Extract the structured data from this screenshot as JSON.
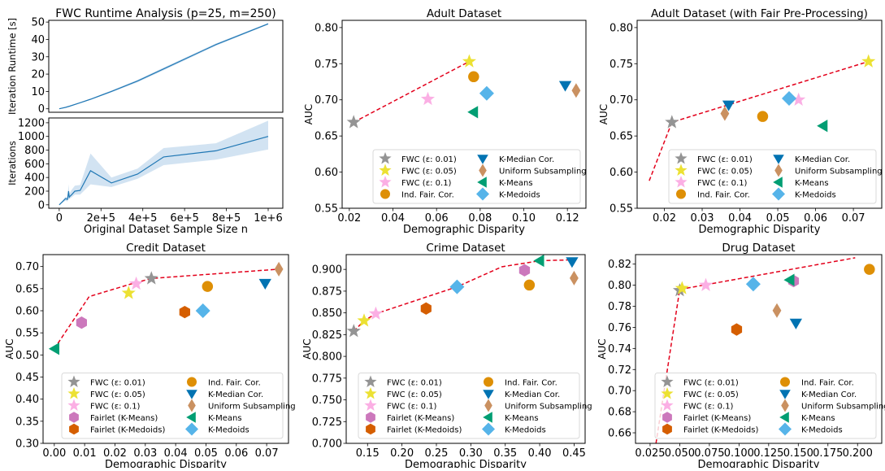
{
  "chart_data": [
    {
      "id": "runtime",
      "type": "line",
      "title": "FWC Runtime Analysis (p=25, m=250)",
      "xlabel": "",
      "ylabel": "Iteration Runtime [s]",
      "xlim": [
        -50000,
        1070000
      ],
      "ylim": [
        -2,
        51
      ],
      "yticks": [
        0,
        10,
        20,
        30,
        40,
        50
      ],
      "ytick_labels": [
        "0",
        "10",
        "20",
        "30",
        "40",
        "50"
      ],
      "series": [
        {
          "name": "runtime",
          "color": "#1f77b4",
          "x": [
            0,
            30000,
            50000,
            100000,
            150000,
            250000,
            375000,
            500000,
            750000,
            1000000
          ],
          "y": [
            0,
            0.8,
            1.5,
            3.5,
            5.5,
            10,
            16,
            23,
            37,
            49
          ],
          "band_low": [
            0,
            0.7,
            1.3,
            3.2,
            5.2,
            9.5,
            15.3,
            22.2,
            36.3,
            48.5
          ],
          "band_high": [
            0.2,
            0.9,
            1.7,
            3.8,
            5.8,
            10.5,
            16.7,
            23.8,
            37.7,
            49.5
          ]
        }
      ]
    },
    {
      "id": "iterations",
      "type": "line",
      "title": "",
      "xlabel": "Original Dataset Sample Size n",
      "ylabel": "Iterations",
      "xlim": [
        -50000,
        1070000
      ],
      "ylim": [
        -50,
        1270
      ],
      "xticks": [
        0,
        200000,
        400000,
        600000,
        800000,
        1000000
      ],
      "xtick_labels": [
        "0",
        "2e+5",
        "4e+5",
        "6e+5",
        "8e+5",
        "1e+6"
      ],
      "yticks": [
        0,
        200,
        400,
        600,
        800,
        1000,
        1200
      ],
      "ytick_labels": [
        "0",
        "200",
        "400",
        "600",
        "800",
        "1000",
        "1200"
      ],
      "series": [
        {
          "name": "iterations",
          "color": "#1f77b4",
          "band_color": "#a6c8e6",
          "x": [
            0,
            20000,
            30000,
            40000,
            45000,
            48000,
            50000,
            60000,
            75000,
            100000,
            150000,
            250000,
            375000,
            500000,
            750000,
            1000000
          ],
          "y": [
            0,
            60,
            90,
            80,
            200,
            110,
            120,
            150,
            200,
            210,
            500,
            320,
            450,
            700,
            790,
            1000
          ],
          "band_low": [
            0,
            40,
            60,
            50,
            120,
            80,
            90,
            110,
            150,
            150,
            300,
            260,
            380,
            580,
            660,
            810
          ],
          "band_high": [
            0,
            80,
            120,
            110,
            300,
            160,
            170,
            220,
            280,
            290,
            750,
            400,
            530,
            830,
            900,
            1230
          ]
        }
      ]
    },
    {
      "id": "adult",
      "type": "scatter",
      "title": "Adult Dataset",
      "xlabel": "Demographic Disparity",
      "ylabel": "AUC",
      "xlim": [
        0.0167,
        0.1285
      ],
      "ylim": [
        0.55,
        0.81
      ],
      "xticks": [
        0.02,
        0.04,
        0.06,
        0.08,
        0.1,
        0.12
      ],
      "xtick_labels": [
        "0.02",
        "0.04",
        "0.06",
        "0.08",
        "0.10",
        "0.12"
      ],
      "yticks": [
        0.55,
        0.6,
        0.65,
        0.7,
        0.75,
        0.8
      ],
      "ytick_labels": [
        "0.55",
        "0.60",
        "0.65",
        "0.70",
        "0.75",
        "0.80"
      ],
      "frontier": {
        "x": [
          0.022,
          0.075
        ],
        "y": [
          0.669,
          0.753
        ]
      },
      "points": [
        {
          "method": "FWC (ε: 0.01)",
          "x": 0.022,
          "y": 0.669
        },
        {
          "method": "FWC (ε: 0.05)",
          "x": 0.075,
          "y": 0.753
        },
        {
          "method": "FWC (ε: 0.1)",
          "x": 0.056,
          "y": 0.701
        },
        {
          "method": "Ind. Fair. Cor.",
          "x": 0.077,
          "y": 0.732
        },
        {
          "method": "K-Median Cor.",
          "x": 0.119,
          "y": 0.72
        },
        {
          "method": "Uniform Subsampling",
          "x": 0.124,
          "y": 0.713
        },
        {
          "method": "K-Means",
          "x": 0.077,
          "y": 0.683
        },
        {
          "method": "K-Medoids",
          "x": 0.083,
          "y": 0.709
        }
      ],
      "legend": {
        "placement": "lower-right",
        "columns": 2,
        "entries": [
          "FWC (ε: 0.01)",
          "FWC (ε: 0.05)",
          "FWC (ε: 0.1)",
          "Ind. Fair. Cor.",
          "K-Median Cor.",
          "Uniform Subsampling",
          "K-Means",
          "K-Medoids"
        ]
      }
    },
    {
      "id": "adult-fair",
      "type": "scatter",
      "title": "Adult Dataset (with Fair Pre-Processing)",
      "xlabel": "Demographic Disparity",
      "ylabel": "AUC",
      "xlim": [
        0.0128,
        0.0775
      ],
      "ylim": [
        0.55,
        0.81
      ],
      "xticks": [
        0.02,
        0.03,
        0.04,
        0.05,
        0.06,
        0.07
      ],
      "xtick_labels": [
        "0.02",
        "0.03",
        "0.04",
        "0.05",
        "0.06",
        "0.07"
      ],
      "yticks": [
        0.55,
        0.6,
        0.65,
        0.7,
        0.75,
        0.8
      ],
      "ytick_labels": [
        "0.55",
        "0.60",
        "0.65",
        "0.70",
        "0.75",
        "0.80"
      ],
      "frontier": {
        "x": [
          0.016,
          0.022,
          0.074
        ],
        "y": [
          0.588,
          0.669,
          0.753
        ]
      },
      "points": [
        {
          "method": "FWC (ε: 0.01)",
          "x": 0.022,
          "y": 0.669
        },
        {
          "method": "FWC (ε: 0.05)",
          "x": 0.074,
          "y": 0.753
        },
        {
          "method": "FWC (ε: 0.1)",
          "x": 0.0555,
          "y": 0.7
        },
        {
          "method": "Ind. Fair. Cor.",
          "x": 0.046,
          "y": 0.677
        },
        {
          "method": "K-Median Cor.",
          "x": 0.037,
          "y": 0.693
        },
        {
          "method": "Uniform Subsampling",
          "x": 0.036,
          "y": 0.681
        },
        {
          "method": "K-Means",
          "x": 0.062,
          "y": 0.664
        },
        {
          "method": "K-Medoids",
          "x": 0.053,
          "y": 0.702
        }
      ],
      "legend": {
        "placement": "lower-right",
        "columns": 2,
        "entries": [
          "FWC (ε: 0.01)",
          "FWC (ε: 0.05)",
          "FWC (ε: 0.1)",
          "Ind. Fair. Cor.",
          "K-Median Cor.",
          "Uniform Subsampling",
          "K-Means",
          "K-Medoids"
        ]
      }
    },
    {
      "id": "credit",
      "type": "scatter",
      "title": "Credit Dataset",
      "xlabel": "Demographic Disparity",
      "ylabel": "AUC",
      "xlim": [
        -0.0037,
        0.0772
      ],
      "ylim": [
        0.3,
        0.727
      ],
      "xticks": [
        0.0,
        0.01,
        0.02,
        0.03,
        0.04,
        0.05,
        0.06,
        0.07
      ],
      "xtick_labels": [
        "0.00",
        "0.01",
        "0.02",
        "0.03",
        "0.04",
        "0.05",
        "0.06",
        "0.07"
      ],
      "yticks": [
        0.3,
        0.35,
        0.4,
        0.45,
        0.5,
        0.55,
        0.6,
        0.65,
        0.7
      ],
      "ytick_labels": [
        "0.30",
        "0.35",
        "0.40",
        "0.45",
        "0.50",
        "0.55",
        "0.60",
        "0.65",
        "0.70"
      ],
      "frontier": {
        "x": [
          0.0,
          0.0115,
          0.025,
          0.032,
          0.074
        ],
        "y": [
          0.514,
          0.632,
          0.66,
          0.673,
          0.694
        ]
      },
      "points": [
        {
          "method": "FWC (ε: 0.01)",
          "x": 0.032,
          "y": 0.673
        },
        {
          "method": "FWC (ε: 0.05)",
          "x": 0.0245,
          "y": 0.64
        },
        {
          "method": "FWC (ε: 0.1)",
          "x": 0.027,
          "y": 0.661
        },
        {
          "method": "Fairlet (K-Means)",
          "x": 0.009,
          "y": 0.573
        },
        {
          "method": "Fairlet (K-Medoids)",
          "x": 0.043,
          "y": 0.597
        },
        {
          "method": "Ind. Fair. Cor.",
          "x": 0.0505,
          "y": 0.655
        },
        {
          "method": "K-Median Cor.",
          "x": 0.0695,
          "y": 0.662
        },
        {
          "method": "Uniform Subsampling",
          "x": 0.074,
          "y": 0.694
        },
        {
          "method": "K-Means",
          "x": 0.0002,
          "y": 0.514
        },
        {
          "method": "K-Medoids",
          "x": 0.049,
          "y": 0.6
        }
      ],
      "legend": {
        "placement": "lower-right",
        "columns": 2,
        "entries": [
          "FWC (ε: 0.01)",
          "FWC (ε: 0.05)",
          "FWC (ε: 0.1)",
          "Fairlet (K-Means)",
          "Fairlet (K-Medoids)",
          "Ind. Fair. Cor.",
          "K-Median Cor.",
          "Uniform Subsampling",
          "K-Means",
          "K-Medoids"
        ]
      }
    },
    {
      "id": "crime",
      "type": "scatter",
      "title": "Crime Dataset",
      "xlabel": "Demographic Disparity",
      "ylabel": "AUC",
      "xlim": [
        0.119,
        0.466
      ],
      "ylim": [
        0.7,
        0.917
      ],
      "xticks": [
        0.15,
        0.2,
        0.25,
        0.3,
        0.35,
        0.4,
        0.45
      ],
      "xtick_labels": [
        "0.15",
        "0.20",
        "0.25",
        "0.30",
        "0.35",
        "0.40",
        "0.45"
      ],
      "yticks": [
        0.7,
        0.725,
        0.75,
        0.775,
        0.8,
        0.825,
        0.85,
        0.875,
        0.9
      ],
      "ytick_labels": [
        "0.700",
        "0.725",
        "0.750",
        "0.775",
        "0.800",
        "0.825",
        "0.850",
        "0.875",
        "0.900"
      ],
      "frontier": {
        "x": [
          0.13,
          0.145,
          0.162,
          0.28,
          0.345,
          0.4,
          0.447
        ],
        "y": [
          0.829,
          0.841,
          0.849,
          0.88,
          0.903,
          0.91,
          0.911
        ]
      },
      "points": [
        {
          "method": "FWC (ε: 0.01)",
          "x": 0.13,
          "y": 0.829
        },
        {
          "method": "FWC (ε: 0.05)",
          "x": 0.145,
          "y": 0.841
        },
        {
          "method": "FWC (ε: 0.1)",
          "x": 0.162,
          "y": 0.849
        },
        {
          "method": "Fairlet (K-Means)",
          "x": 0.378,
          "y": 0.899
        },
        {
          "method": "Fairlet (K-Medoids)",
          "x": 0.235,
          "y": 0.855
        },
        {
          "method": "Ind. Fair. Cor.",
          "x": 0.385,
          "y": 0.882
        },
        {
          "method": "K-Median Cor.",
          "x": 0.447,
          "y": 0.909
        },
        {
          "method": "Uniform Subsampling",
          "x": 0.45,
          "y": 0.89
        },
        {
          "method": "K-Means",
          "x": 0.4,
          "y": 0.91
        },
        {
          "method": "K-Medoids",
          "x": 0.28,
          "y": 0.88
        }
      ],
      "legend": {
        "placement": "lower-right",
        "columns": 2,
        "entries": [
          "FWC (ε: 0.01)",
          "FWC (ε: 0.05)",
          "FWC (ε: 0.1)",
          "Fairlet (K-Means)",
          "Fairlet (K-Medoids)",
          "Ind. Fair. Cor.",
          "K-Median Cor.",
          "Uniform Subsampling",
          "K-Means",
          "K-Medoids"
        ]
      }
    },
    {
      "id": "drug",
      "type": "scatter",
      "title": "Drug Dataset",
      "xlabel": "Demographic Disparity",
      "ylabel": "AUC",
      "xlim": [
        0.0127,
        0.2204
      ],
      "ylim": [
        0.65,
        0.829
      ],
      "xticks": [
        0.025,
        0.05,
        0.075,
        0.1,
        0.125,
        0.15,
        0.175,
        0.2
      ],
      "xtick_labels": [
        "0.025",
        "0.050",
        "0.075",
        "0.100",
        "0.125",
        "0.150",
        "0.175",
        "0.200"
      ],
      "yticks": [
        0.66,
        0.68,
        0.7,
        0.72,
        0.74,
        0.76,
        0.78,
        0.8,
        0.82
      ],
      "ytick_labels": [
        "0.66",
        "0.68",
        "0.70",
        "0.72",
        "0.74",
        "0.76",
        "0.78",
        "0.80",
        "0.82"
      ],
      "frontier": {
        "x": [
          0.03,
          0.05,
          0.198
        ],
        "y": [
          0.65,
          0.796,
          0.826
        ]
      },
      "points": [
        {
          "method": "FWC (ε: 0.01)",
          "x": 0.05,
          "y": 0.795
        },
        {
          "method": "FWC (ε: 0.05)",
          "x": 0.052,
          "y": 0.797
        },
        {
          "method": "FWC (ε: 0.1)",
          "x": 0.072,
          "y": 0.8
        },
        {
          "method": "Fairlet (K-Means)",
          "x": 0.146,
          "y": 0.804
        },
        {
          "method": "Fairlet (K-Medoids)",
          "x": 0.098,
          "y": 0.758
        },
        {
          "method": "Ind. Fair. Cor.",
          "x": 0.21,
          "y": 0.815
        },
        {
          "method": "K-Median Cor.",
          "x": 0.148,
          "y": 0.764
        },
        {
          "method": "Uniform Subsampling",
          "x": 0.132,
          "y": 0.776
        },
        {
          "method": "K-Means",
          "x": 0.143,
          "y": 0.805
        },
        {
          "method": "K-Medoids",
          "x": 0.112,
          "y": 0.801
        }
      ],
      "legend": {
        "placement": "lower-right",
        "columns": 2,
        "entries": [
          "FWC (ε: 0.01)",
          "FWC (ε: 0.05)",
          "FWC (ε: 0.1)",
          "Fairlet (K-Means)",
          "Fairlet (K-Medoids)",
          "Ind. Fair. Cor.",
          "K-Median Cor.",
          "Uniform Subsampling",
          "K-Means",
          "K-Medoids"
        ]
      }
    }
  ],
  "method_styles": {
    "FWC (ε: 0.01)": {
      "marker": "star",
      "color": "#949494"
    },
    "FWC (ε: 0.05)": {
      "marker": "star",
      "color": "#ece133"
    },
    "FWC (ε: 0.1)": {
      "marker": "star",
      "color": "#fbafe4"
    },
    "Fairlet (K-Means)": {
      "marker": "hexagon",
      "color": "#cc78bc"
    },
    "Fairlet (K-Medoids)": {
      "marker": "hexagon",
      "color": "#d55e00"
    },
    "Ind. Fair. Cor.": {
      "marker": "circle",
      "color": "#de8f05"
    },
    "K-Median Cor.": {
      "marker": "triangle-down",
      "color": "#0173b2"
    },
    "Uniform Subsampling": {
      "marker": "thin-diamond",
      "color": "#ca9161"
    },
    "K-Means": {
      "marker": "triangle-left",
      "color": "#029e73"
    },
    "K-Medoids": {
      "marker": "diamond",
      "color": "#56b4e9"
    }
  },
  "frontier_color": "#e3001b"
}
